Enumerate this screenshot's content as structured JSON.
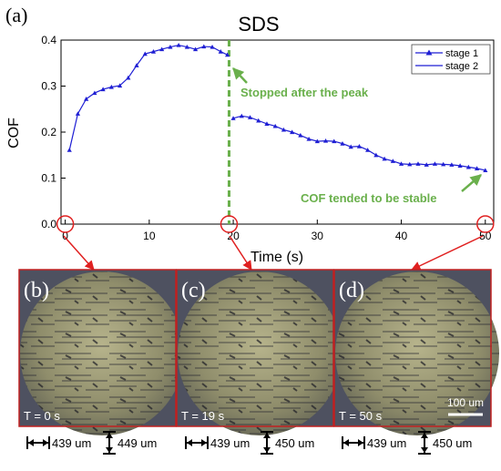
{
  "figure": {
    "panel_a_label": "(a)",
    "panel_b_label": "(b)",
    "panel_c_label": "(c)",
    "panel_d_label": "(d)"
  },
  "chart_data": {
    "type": "line",
    "title": "SDS",
    "xlabel": "Time (s)",
    "ylabel": "COF",
    "xlim": [
      -0.5,
      51
    ],
    "ylim": [
      0,
      0.4
    ],
    "x_ticks": [
      0,
      10,
      20,
      30,
      40,
      50
    ],
    "y_ticks": [
      0.0,
      0.1,
      0.2,
      0.3,
      0.4
    ],
    "x_tick_labels": [
      "0",
      "10",
      "20",
      "30",
      "40",
      "50"
    ],
    "y_tick_labels": [
      "0.0",
      "0.1",
      "0.2",
      "0.3",
      "0.4"
    ],
    "grid": false,
    "legend_position": "top-right",
    "series": [
      {
        "name": "stage 1",
        "color": "#1f1fd4",
        "x": [
          0.5,
          1.5,
          2.5,
          3.5,
          4.5,
          5.5,
          6.5,
          7.5,
          8.5,
          9.5,
          10.5,
          11.5,
          12.5,
          13.5,
          14.5,
          15.5,
          16.5,
          17.5,
          18.5,
          19.3
        ],
        "y": [
          0.161,
          0.24,
          0.272,
          0.285,
          0.293,
          0.298,
          0.301,
          0.318,
          0.345,
          0.37,
          0.375,
          0.38,
          0.385,
          0.389,
          0.385,
          0.38,
          0.386,
          0.385,
          0.375,
          0.368
        ]
      },
      {
        "name": "stage 2",
        "color": "#1f1fd4",
        "x": [
          20,
          21,
          22,
          23,
          24,
          25,
          26,
          27,
          28,
          29,
          30,
          31,
          32,
          33,
          34,
          35,
          36,
          37,
          38,
          39,
          40,
          41,
          42,
          43,
          44,
          45,
          46,
          47,
          48,
          49,
          50
        ],
        "y": [
          0.23,
          0.235,
          0.232,
          0.225,
          0.218,
          0.213,
          0.205,
          0.2,
          0.193,
          0.185,
          0.18,
          0.181,
          0.18,
          0.175,
          0.168,
          0.169,
          0.161,
          0.15,
          0.142,
          0.137,
          0.131,
          0.13,
          0.131,
          0.129,
          0.131,
          0.13,
          0.129,
          0.127,
          0.124,
          0.121,
          0.117
        ]
      }
    ],
    "vline": {
      "x": 19.5,
      "color": "#6ab04c"
    },
    "annotations": [
      {
        "text": "Stopped after the peak",
        "color": "#6ab04c"
      },
      {
        "text": "COF tended to be stable",
        "color": "#6ab04c"
      }
    ],
    "markers_at_x": [
      0,
      19.5,
      50
    ]
  },
  "panels": [
    {
      "time_label": "T = 0 s",
      "width_text": "439 um",
      "height_text": "449 um"
    },
    {
      "time_label": "T = 19 s",
      "width_text": "439 um",
      "height_text": "450 um"
    },
    {
      "time_label": "T = 50 s",
      "width_text": "439 um",
      "height_text": "450 um"
    }
  ],
  "scale_bar_label": "100 um",
  "colors": {
    "accent_red": "#e02020",
    "line_blue": "#1f1fd4",
    "annotation_green": "#6ab04c"
  }
}
